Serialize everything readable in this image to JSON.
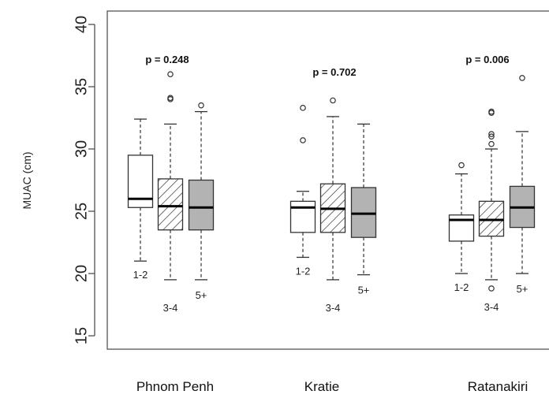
{
  "chart_data": {
    "type": "boxplot",
    "ylabel": "MUAC (cm)",
    "ylim": [
      14,
      41
    ],
    "yticks": [
      15,
      20,
      25,
      30,
      35,
      40
    ],
    "groups": [
      {
        "name": "Phnom Penh",
        "pvalue": "p = 0.248",
        "boxes": [
          {
            "label": "1-2",
            "fill": "white",
            "whisker_low": 21.0,
            "q1": 25.3,
            "median": 26.0,
            "q3": 29.5,
            "whisker_high": 32.4,
            "outliers": []
          },
          {
            "label": "3-4",
            "fill": "hatch",
            "whisker_low": 19.5,
            "q1": 23.5,
            "median": 25.4,
            "q3": 27.6,
            "whisker_high": 32.0,
            "outliers": [
              34.0,
              34.1,
              36.0
            ]
          },
          {
            "label": "5+",
            "fill": "gray",
            "whisker_low": 19.5,
            "q1": 23.5,
            "median": 25.3,
            "q3": 27.5,
            "whisker_high": 33.0,
            "outliers": [
              33.5
            ]
          }
        ]
      },
      {
        "name": "Kratie",
        "pvalue": "p = 0.702",
        "boxes": [
          {
            "label": "1-2",
            "fill": "white",
            "whisker_low": 21.3,
            "q1": 23.3,
            "median": 25.3,
            "q3": 25.8,
            "whisker_high": 26.6,
            "outliers": [
              30.7,
              33.3
            ]
          },
          {
            "label": "3-4",
            "fill": "hatch",
            "whisker_low": 19.5,
            "q1": 23.3,
            "median": 25.2,
            "q3": 27.2,
            "whisker_high": 32.6,
            "outliers": [
              33.9
            ]
          },
          {
            "label": "5+",
            "fill": "gray",
            "whisker_low": 19.9,
            "q1": 22.9,
            "median": 24.8,
            "q3": 26.9,
            "whisker_high": 32.0,
            "outliers": []
          }
        ]
      },
      {
        "name": "Ratanakiri",
        "pvalue": "p = 0.006",
        "boxes": [
          {
            "label": "1-2",
            "fill": "white",
            "whisker_low": 20.0,
            "q1": 22.6,
            "median": 24.3,
            "q3": 24.7,
            "whisker_high": 28.0,
            "outliers": [
              28.7
            ]
          },
          {
            "label": "3-4",
            "fill": "hatch",
            "whisker_low": 19.5,
            "q1": 23.0,
            "median": 24.3,
            "q3": 25.8,
            "whisker_high": 30.0,
            "outliers": [
              18.8,
              30.4,
              31.0,
              31.2,
              32.9,
              33.0
            ]
          },
          {
            "label": "5+",
            "fill": "gray",
            "whisker_low": 20.0,
            "q1": 23.7,
            "median": 25.3,
            "q3": 27.0,
            "whisker_high": 31.4,
            "outliers": [
              35.7
            ]
          }
        ]
      }
    ],
    "colors": {
      "gray": "#b3b3b3",
      "white": "#ffffff",
      "line": "#333333"
    }
  }
}
